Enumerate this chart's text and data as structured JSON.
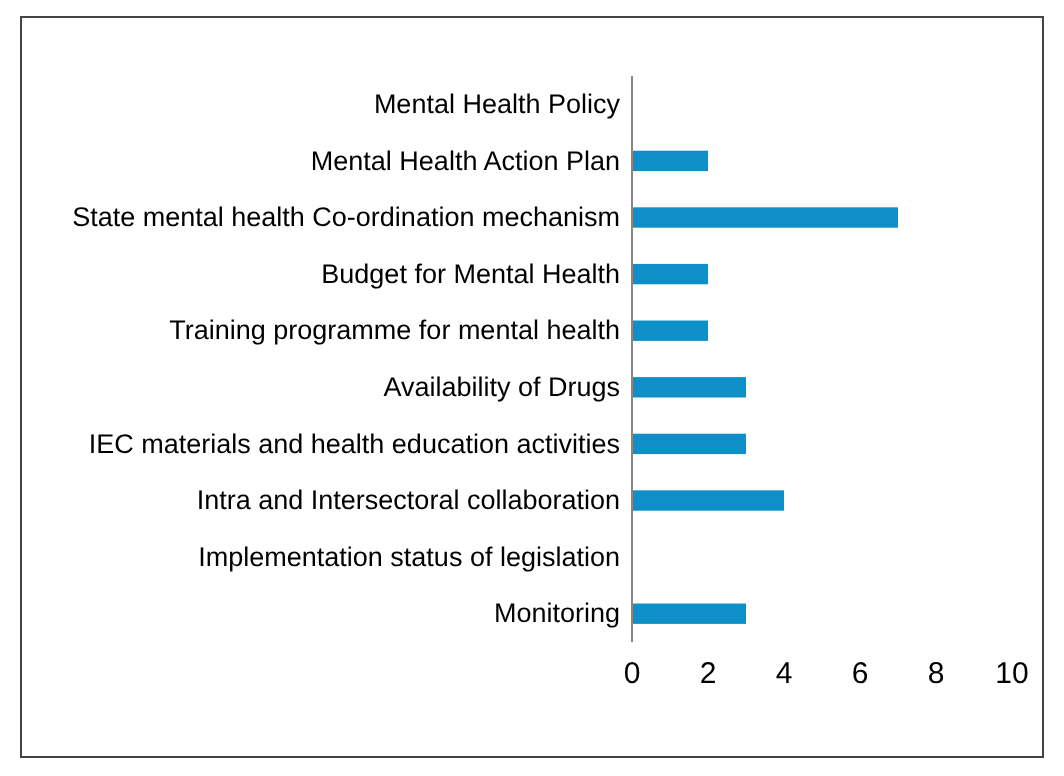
{
  "chart_data": {
    "type": "bar",
    "orientation": "horizontal",
    "categories": [
      "Mental Health Policy",
      "Mental Health Action Plan",
      "State mental health Co-ordination mechanism",
      "Budget for Mental Health",
      "Training programme for mental health",
      "Availability of Drugs",
      "IEC materials and health education activities",
      "Intra and Intersectoral collaboration",
      "Implementation status of legislation",
      "Monitoring"
    ],
    "values": [
      0,
      2,
      7,
      2,
      2,
      3,
      3,
      4,
      0,
      3
    ],
    "color": "#0e8fc7",
    "xlim": [
      0,
      10
    ],
    "xticks": [
      0,
      2,
      4,
      6,
      8,
      10
    ],
    "grid": false
  }
}
